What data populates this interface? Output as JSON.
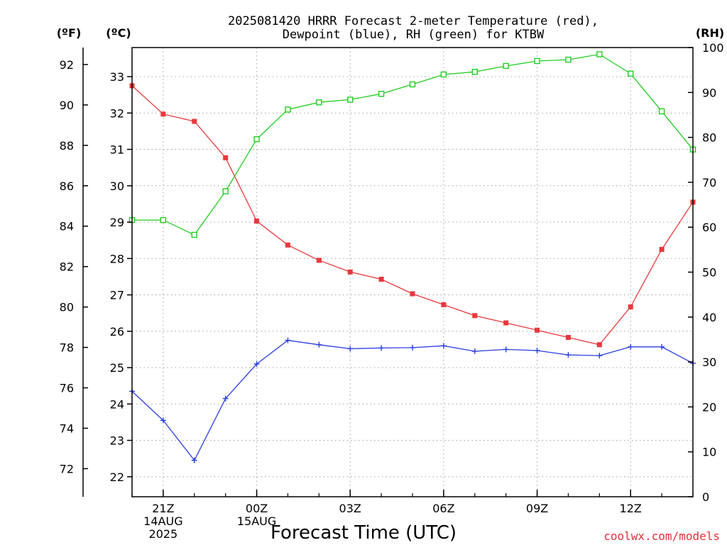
{
  "chart_data": {
    "type": "line",
    "title_lines": [
      "2025081420 HRRR Forecast 2-meter Temperature (red),",
      "Dewpoint (blue), RH (green) for KTBW"
    ],
    "xlabel": "Forecast Time (UTC)",
    "credit": "coolwx.com/models",
    "units": {
      "fahrenheit": "(ºF)",
      "celsius": "(ºC)",
      "rh": "(RH)"
    },
    "x_hours": [
      20,
      21,
      22,
      23,
      24,
      25,
      26,
      27,
      28,
      29,
      30,
      31,
      32,
      33,
      34,
      35,
      36,
      37,
      38
    ],
    "x_ticks": [
      {
        "hour": 21,
        "lines": [
          "21Z",
          "14AUG",
          "2025"
        ]
      },
      {
        "hour": 24,
        "lines": [
          "00Z",
          "15AUG"
        ]
      },
      {
        "hour": 27,
        "lines": [
          "03Z"
        ]
      },
      {
        "hour": 30,
        "lines": [
          "06Z"
        ]
      },
      {
        "hour": 33,
        "lines": [
          "09Z"
        ]
      },
      {
        "hour": 36,
        "lines": [
          "12Z"
        ]
      }
    ],
    "y_celsius_ticks": [
      22,
      23,
      24,
      25,
      26,
      27,
      28,
      29,
      30,
      31,
      32,
      33
    ],
    "y_fahrenheit_ticks": [
      72,
      74,
      76,
      78,
      80,
      82,
      84,
      86,
      88,
      90,
      92
    ],
    "y_rh_ticks": [
      0,
      10,
      20,
      30,
      40,
      50,
      60,
      70,
      80,
      90,
      100
    ],
    "celsius_range": [
      21.45,
      33.8
    ],
    "rh_range": [
      0,
      100
    ],
    "series": [
      {
        "name": "Temperature",
        "color": "#e8383d",
        "marker": "filled-square",
        "unit": "C",
        "values": [
          32.75,
          31.97,
          31.77,
          30.77,
          29.03,
          28.37,
          27.95,
          27.63,
          27.43,
          27.03,
          26.73,
          26.43,
          26.23,
          26.03,
          25.83,
          25.63,
          26.67,
          28.25,
          29.55
        ]
      },
      {
        "name": "Dewpoint",
        "color": "#2a3ee0",
        "marker": "plus",
        "unit": "C",
        "values": [
          24.35,
          23.55,
          22.45,
          24.15,
          25.1,
          25.75,
          25.63,
          25.52,
          25.54,
          25.55,
          25.6,
          25.45,
          25.5,
          25.47,
          25.35,
          25.33,
          25.57,
          25.57,
          25.12
        ]
      },
      {
        "name": "RH",
        "color": "#22cc22",
        "marker": "open-square",
        "unit": "%",
        "values": [
          61.6,
          61.6,
          58.3,
          68.0,
          79.6,
          86.2,
          87.8,
          88.4,
          89.7,
          91.8,
          94.0,
          94.6,
          95.9,
          97.0,
          97.3,
          98.5,
          94.2,
          85.8,
          77.3
        ]
      }
    ]
  }
}
